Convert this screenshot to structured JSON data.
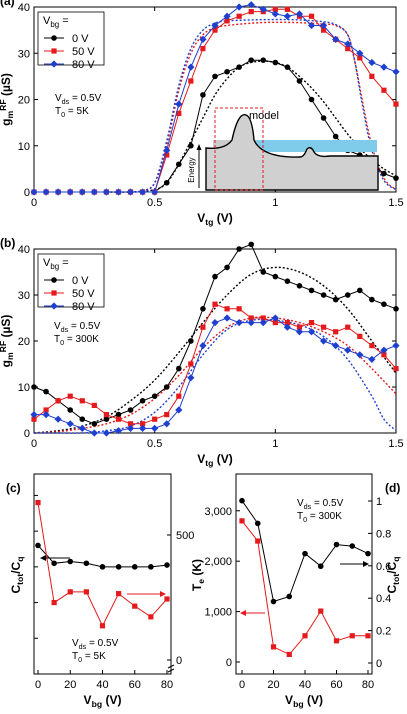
{
  "chart_data": [
    {
      "panel": "(a)",
      "type": "line",
      "xlabel": "Vtg (V)",
      "ylabel": "gmRF (µS)",
      "xlim": [
        0,
        1.5
      ],
      "ylim": [
        0,
        40
      ],
      "xticks": [
        "0",
        "0.5",
        "1",
        "1.5"
      ],
      "yticks": [
        "0",
        "10",
        "20",
        "30",
        "40"
      ],
      "legend_title": "Vbg =",
      "legend_position": "top-left",
      "annotation": [
        "Vds = 0.5V",
        "T0 = 5K"
      ],
      "inset_label": "model",
      "inset_axis_label": "Energy",
      "series": [
        {
          "name": "0 V",
          "color": "#000000",
          "marker": "circle",
          "x": [
            0,
            0.05,
            0.1,
            0.15,
            0.2,
            0.25,
            0.3,
            0.35,
            0.4,
            0.45,
            0.5,
            0.55,
            0.6,
            0.65,
            0.7,
            0.75,
            0.8,
            0.85,
            0.9,
            0.95,
            1.0,
            1.05,
            1.1,
            1.15,
            1.2,
            1.25,
            1.3,
            1.35,
            1.4,
            1.45,
            1.5
          ],
          "y": [
            0,
            0,
            0,
            0,
            0,
            0,
            0,
            0,
            0,
            0,
            0,
            2,
            6,
            10,
            21,
            25,
            26,
            27,
            28.5,
            28.5,
            28,
            27,
            24,
            20,
            16,
            12,
            9,
            8,
            6,
            4,
            3
          ]
        },
        {
          "name": "50 V",
          "color": "#e41a1c",
          "marker": "square",
          "x": [
            0,
            0.05,
            0.1,
            0.15,
            0.2,
            0.25,
            0.3,
            0.35,
            0.4,
            0.45,
            0.5,
            0.55,
            0.6,
            0.65,
            0.7,
            0.75,
            0.8,
            0.85,
            0.9,
            0.95,
            1.0,
            1.05,
            1.1,
            1.15,
            1.2,
            1.25,
            1.3,
            1.35,
            1.4,
            1.45,
            1.5
          ],
          "y": [
            0,
            0,
            0,
            0,
            0,
            0,
            0,
            0,
            0,
            0,
            0,
            8,
            17,
            24,
            31,
            35,
            37,
            38,
            39,
            39,
            39.5,
            39.5,
            38,
            38,
            35,
            33,
            31,
            29,
            25,
            22,
            19
          ]
        },
        {
          "name": "80 V",
          "color": "#1f3fcf",
          "marker": "diamond",
          "x": [
            0,
            0.05,
            0.1,
            0.15,
            0.2,
            0.25,
            0.3,
            0.35,
            0.4,
            0.45,
            0.5,
            0.55,
            0.6,
            0.65,
            0.7,
            0.75,
            0.8,
            0.85,
            0.9,
            0.95,
            1.0,
            1.05,
            1.1,
            1.15,
            1.2,
            1.25,
            1.3,
            1.35,
            1.4,
            1.45,
            1.5
          ],
          "y": [
            0,
            0,
            0,
            0,
            0,
            0,
            0,
            0,
            0,
            0,
            0,
            9,
            19,
            27,
            33,
            36,
            38,
            40,
            40.5,
            39.5,
            38.5,
            38,
            38.5,
            36,
            36,
            33,
            32,
            30,
            28,
            27,
            26
          ]
        }
      ],
      "fits": [
        {
          "color": "#000000",
          "x": [
            0.3,
            0.4,
            0.5,
            0.55,
            0.6,
            0.65,
            0.7,
            0.75,
            0.8,
            0.85,
            0.9,
            0.95,
            1.0,
            1.05,
            1.1,
            1.15,
            1.2,
            1.25,
            1.3,
            1.35,
            1.4,
            1.45,
            1.5
          ],
          "y": [
            0,
            0,
            0.5,
            2,
            6,
            11,
            16,
            21,
            24.5,
            27,
            28,
            28.3,
            28,
            27,
            25,
            22.5,
            19.5,
            16,
            12.5,
            9.5,
            7,
            5,
            3.5
          ]
        },
        {
          "color": "#e41a1c",
          "x": [
            0.3,
            0.4,
            0.45,
            0.5,
            0.55,
            0.6,
            0.65,
            0.7,
            0.75,
            0.8,
            0.9,
            1.0,
            1.1,
            1.2,
            1.25,
            1.3,
            1.33,
            1.36,
            1.4,
            1.45,
            1.5
          ],
          "y": [
            0,
            0,
            0.3,
            2,
            10,
            22,
            30,
            34,
            35.5,
            36,
            36.5,
            36.7,
            36.6,
            36.3,
            36,
            34,
            28,
            20,
            10,
            3,
            0.5
          ]
        },
        {
          "color": "#1f3fcf",
          "x": [
            0.3,
            0.4,
            0.45,
            0.5,
            0.55,
            0.6,
            0.65,
            0.7,
            0.75,
            0.8,
            0.9,
            1.0,
            1.1,
            1.2,
            1.25,
            1.3,
            1.33,
            1.36,
            1.4,
            1.45,
            1.5
          ],
          "y": [
            0,
            0,
            0.3,
            2,
            11,
            23,
            31,
            35,
            36.5,
            37,
            37.2,
            37.3,
            37.2,
            36.8,
            36.2,
            34,
            28,
            19,
            9,
            2.5,
            0.5
          ]
        }
      ]
    },
    {
      "panel": "(b)",
      "type": "line",
      "xlabel": "Vtg (V)",
      "ylabel": "gmRF (µS)",
      "xlim": [
        0,
        1.5
      ],
      "ylim": [
        0,
        40
      ],
      "xticks": [
        "0",
        "0.5",
        "1",
        "1.5"
      ],
      "yticks": [
        "0",
        "10",
        "20",
        "30",
        "40"
      ],
      "legend_title": "Vbg =",
      "legend_position": "top-left",
      "annotation": [
        "Vds = 0.5V",
        "T0 = 300K"
      ],
      "series": [
        {
          "name": "0 V",
          "color": "#000000",
          "marker": "circle",
          "x": [
            0,
            0.05,
            0.1,
            0.15,
            0.2,
            0.25,
            0.3,
            0.35,
            0.4,
            0.45,
            0.5,
            0.55,
            0.6,
            0.65,
            0.7,
            0.75,
            0.8,
            0.85,
            0.9,
            0.95,
            1.0,
            1.05,
            1.1,
            1.15,
            1.2,
            1.25,
            1.3,
            1.35,
            1.4,
            1.45,
            1.5
          ],
          "y": [
            10,
            9,
            7,
            5,
            3,
            2,
            3,
            4,
            5,
            7,
            8,
            10,
            14,
            20,
            27,
            34,
            36,
            40,
            41,
            35,
            34,
            33,
            32,
            31,
            30,
            29,
            30,
            31,
            29,
            28,
            27
          ]
        },
        {
          "name": "50 V",
          "color": "#e41a1c",
          "marker": "square",
          "x": [
            0,
            0.05,
            0.1,
            0.15,
            0.2,
            0.25,
            0.3,
            0.35,
            0.4,
            0.45,
            0.5,
            0.55,
            0.6,
            0.65,
            0.7,
            0.75,
            0.8,
            0.85,
            0.9,
            0.95,
            1.0,
            1.05,
            1.1,
            1.15,
            1.2,
            1.25,
            1.3,
            1.35,
            1.4,
            1.45,
            1.5
          ],
          "y": [
            3,
            5,
            7,
            8,
            7,
            6,
            4,
            3,
            2,
            2,
            3,
            4,
            8,
            15,
            23,
            28,
            27,
            27,
            25,
            25,
            24,
            24,
            23,
            24,
            23,
            22,
            23,
            21,
            19,
            17,
            14
          ]
        },
        {
          "name": "80 V",
          "color": "#1f3fcf",
          "marker": "diamond",
          "x": [
            0,
            0.05,
            0.1,
            0.15,
            0.2,
            0.25,
            0.3,
            0.35,
            0.4,
            0.45,
            0.5,
            0.55,
            0.6,
            0.65,
            0.7,
            0.75,
            0.8,
            0.85,
            0.9,
            0.95,
            1.0,
            1.05,
            1.1,
            1.15,
            1.2,
            1.25,
            1.3,
            1.35,
            1.4,
            1.45,
            1.5
          ],
          "y": [
            4,
            4,
            3,
            2,
            1,
            0,
            0,
            0.5,
            1,
            1,
            1,
            2,
            5,
            12,
            19,
            24,
            25,
            24,
            24,
            24,
            25,
            23,
            22,
            22,
            20,
            19,
            18,
            17,
            16,
            18,
            19
          ]
        }
      ],
      "fits": [
        {
          "color": "#000000",
          "x": [
            0,
            0.1,
            0.2,
            0.3,
            0.4,
            0.5,
            0.6,
            0.7,
            0.8,
            0.9,
            1.0,
            1.1,
            1.2,
            1.3,
            1.4,
            1.5
          ],
          "y": [
            0,
            0.5,
            1.5,
            3.5,
            7,
            11.5,
            17.5,
            24,
            30,
            34.5,
            36,
            35,
            32,
            27,
            20,
            13
          ]
        },
        {
          "color": "#e41a1c",
          "x": [
            0,
            0.1,
            0.2,
            0.3,
            0.4,
            0.5,
            0.6,
            0.7,
            0.8,
            0.9,
            1.0,
            1.1,
            1.2,
            1.3,
            1.4,
            1.5
          ],
          "y": [
            0,
            0.3,
            1,
            2,
            4,
            7.5,
            12.5,
            18.5,
            23,
            25,
            25,
            24,
            22,
            19,
            14,
            8.5
          ]
        },
        {
          "color": "#1f3fcf",
          "x": [
            0,
            0.1,
            0.2,
            0.3,
            0.4,
            0.5,
            0.6,
            0.7,
            0.8,
            0.9,
            1.0,
            1.1,
            1.2,
            1.3,
            1.4,
            1.45,
            1.5
          ],
          "y": [
            0,
            0,
            0,
            0.5,
            1.5,
            4.5,
            10,
            17,
            22.5,
            24.5,
            24.5,
            23.5,
            21,
            16,
            8,
            3,
            0.5
          ]
        }
      ]
    },
    {
      "panel": "(c)",
      "type": "line",
      "xlabel": "Vbg (V)",
      "ylabel": "Ctot/Cq",
      "xlim": [
        0,
        80
      ],
      "ylim_left": [
        0,
        1
      ],
      "xticks": [
        "0",
        "20",
        "40",
        "60",
        "80"
      ],
      "yticks_left": [
        "0",
        "0.2",
        "0.4",
        "0.6",
        "0.8",
        "1"
      ],
      "yticks_right": [
        "500",
        "0"
      ],
      "annotation": [
        "Vds = 0.5V",
        "T0 = 5K"
      ],
      "series": [
        {
          "axis": "left",
          "color": "#000000",
          "marker": "circle",
          "x": [
            0,
            10,
            20,
            30,
            40,
            50,
            60,
            70,
            80
          ],
          "y": [
            0.72,
            0.62,
            0.63,
            0.62,
            0.6,
            0.6,
            0.6,
            0.6,
            0.61
          ]
        },
        {
          "axis": "right",
          "color": "#e41a1c",
          "marker": "square",
          "x": [
            0,
            10,
            20,
            30,
            40,
            50,
            60,
            70,
            80
          ],
          "y": [
            0.96,
            0.4,
            0.46,
            0.46,
            0.27,
            0.45,
            0.38,
            0.32,
            0.42
          ]
        }
      ]
    },
    {
      "panel": "(d)",
      "type": "line",
      "xlabel": "Vbg (V)",
      "ylabel_left": "Te (K)",
      "ylabel_right": "Ctot/Cq",
      "xlim": [
        0,
        80
      ],
      "ylim_left": [
        0,
        3333
      ],
      "ylim_right": [
        0,
        1
      ],
      "xticks": [
        "0",
        "20",
        "40",
        "60",
        "80"
      ],
      "yticks_left": [
        "0",
        "1,000",
        "2,000",
        "3,000"
      ],
      "yticks_right": [
        "0",
        "0.2",
        "0.4",
        "0.6",
        "0.8",
        "1"
      ],
      "annotation": [
        "Vds = 0.5V",
        "T0 = 300K"
      ],
      "series": [
        {
          "axis": "left",
          "color": "#000000",
          "marker": "circle",
          "x": [
            0,
            10,
            20,
            30,
            40,
            50,
            60,
            70,
            80
          ],
          "y": [
            3200,
            2750,
            1200,
            1300,
            2150,
            1900,
            2330,
            2300,
            2150
          ]
        },
        {
          "axis": "left",
          "color": "#e41a1c",
          "marker": "square",
          "x": [
            0,
            10,
            20,
            30,
            40,
            50,
            60,
            70,
            80
          ],
          "y": [
            2800,
            2400,
            300,
            150,
            520,
            1010,
            420,
            520,
            520
          ]
        }
      ]
    }
  ]
}
